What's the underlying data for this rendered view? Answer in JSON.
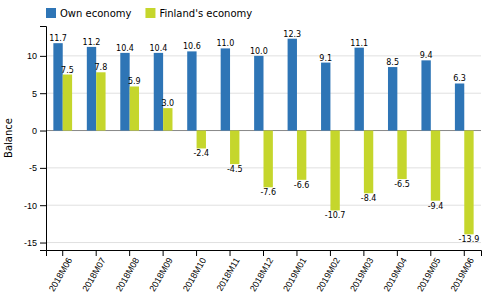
{
  "chart_data": {
    "type": "bar",
    "categories": [
      "2018M06",
      "2018M07",
      "2018M08",
      "2018M09",
      "2018M10",
      "2018M11",
      "2018M12",
      "2019M01",
      "2019M02",
      "2019M03",
      "2019M04",
      "2019M05",
      "2019M06"
    ],
    "series": [
      {
        "name": "Own economy",
        "color": "#2E75B6",
        "values": [
          11.7,
          11.2,
          10.4,
          10.4,
          10.6,
          11.0,
          10.0,
          12.3,
          9.1,
          11.1,
          8.5,
          9.4,
          6.3
        ],
        "value_labels": [
          "11.7",
          "11.2",
          "10.4",
          "10.4",
          "10.6",
          "11.0",
          "10.0",
          "12.3",
          "9.1",
          "11.1",
          "8.5",
          "9.4",
          "6.3"
        ]
      },
      {
        "name": "Finland's economy",
        "color": "#C5D62C",
        "values": [
          7.5,
          7.8,
          5.9,
          3.0,
          -2.4,
          -4.5,
          -7.6,
          -6.6,
          -10.7,
          -8.4,
          -6.5,
          -9.4,
          -13.9
        ],
        "value_labels": [
          "7.5",
          "7.8",
          "5.9",
          "3.0",
          "-2.4",
          "-4.5",
          "-7.6",
          "-6.6",
          "-10.7",
          "-8.4",
          "-6.5",
          "-9.4",
          "-13.9"
        ]
      }
    ],
    "y_label": "Balance",
    "ylim": [
      -16,
      14
    ],
    "yticks": [
      -15,
      -10,
      -5,
      0,
      5,
      10
    ],
    "grid": true,
    "legend": "upper left",
    "data_labels": true
  }
}
